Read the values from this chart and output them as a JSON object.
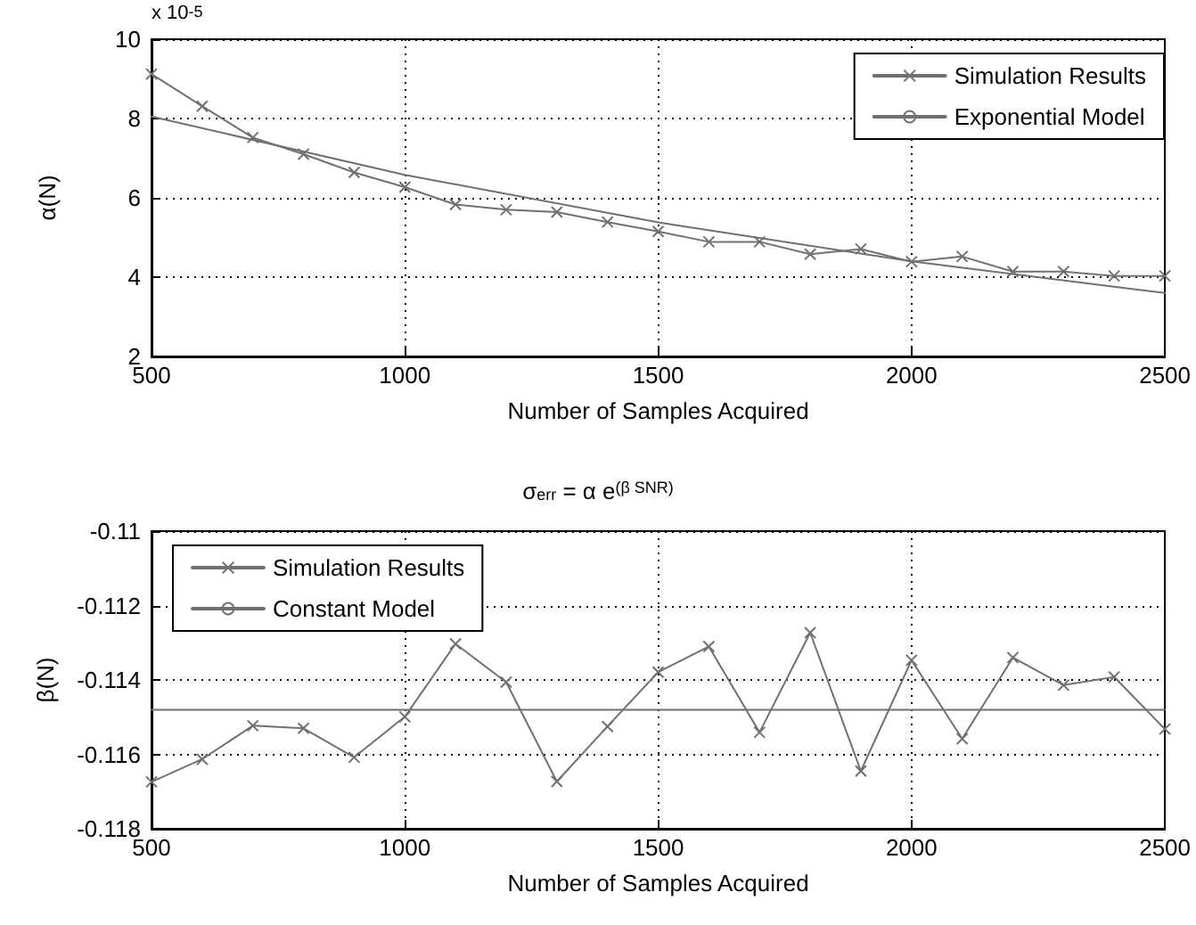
{
  "chart_data": [
    {
      "type": "line",
      "ylabel": "α(N)",
      "xlabel": "Number of Samples Acquired",
      "annotations": [
        "x 10$^{-5}$"
      ],
      "xlim": [
        500,
        2500
      ],
      "xticks": [
        500,
        1000,
        1500,
        2000,
        2500
      ],
      "ylim": [
        2,
        10
      ],
      "yticks": [
        2,
        4,
        6,
        8,
        10
      ],
      "grid": true,
      "legend": "top right",
      "x": [
        500,
        600,
        700,
        800,
        900,
        1000,
        1100,
        1200,
        1300,
        1400,
        1500,
        1600,
        1700,
        1800,
        1900,
        2000,
        2100,
        2200,
        2300,
        2400,
        2500
      ],
      "series": [
        {
          "name": "Simulation Results",
          "color": "#707070",
          "marker": "cross",
          "values": [
            9.12,
            8.31,
            7.52,
            7.1,
            6.64,
            6.27,
            5.83,
            5.7,
            5.64,
            5.39,
            5.15,
            4.89,
            4.89,
            4.58,
            4.71,
            4.39,
            4.52,
            4.14,
            4.14,
            4.03,
            4.03
          ]
        },
        {
          "name": "Exponential Model",
          "color": "#707070",
          "marker": "none",
          "x": [
            500,
            1000,
            1500,
            2000,
            2500
          ],
          "values": [
            8.05,
            6.58,
            5.38,
            4.4,
            3.6
          ]
        }
      ]
    },
    {
      "type": "line",
      "title": "σ$_{err}$ = α e$^{(β SNR)}$",
      "ylabel": "β(N)",
      "xlabel": "Number of Samples Acquired",
      "xlim": [
        500,
        2500
      ],
      "xticks": [
        500,
        1000,
        1500,
        2000,
        2500
      ],
      "ylim": [
        -0.118,
        -0.11
      ],
      "yticks": [
        -0.118,
        -0.116,
        -0.114,
        -0.112,
        -0.11
      ],
      "grid": true,
      "legend": "top left",
      "x": [
        500,
        600,
        700,
        800,
        900,
        1000,
        1100,
        1200,
        1300,
        1400,
        1500,
        1600,
        1700,
        1800,
        1900,
        2000,
        2100,
        2200,
        2300,
        2400,
        2500
      ],
      "series": [
        {
          "name": "Simulation Results",
          "color": "#707070",
          "marker": "cross",
          "values": [
            -0.11674,
            -0.11613,
            -0.11523,
            -0.1153,
            -0.11608,
            -0.11499,
            -0.11303,
            -0.11406,
            -0.11673,
            -0.11525,
            -0.11379,
            -0.1131,
            -0.11541,
            -0.11273,
            -0.11645,
            -0.11347,
            -0.11558,
            -0.1134,
            -0.11414,
            -0.11392,
            -0.11532
          ]
        },
        {
          "name": "Constant Model",
          "color": "#707070",
          "marker": "none",
          "x": [
            500,
            2500
          ],
          "values": [
            -0.1148,
            -0.1148
          ]
        }
      ]
    }
  ]
}
